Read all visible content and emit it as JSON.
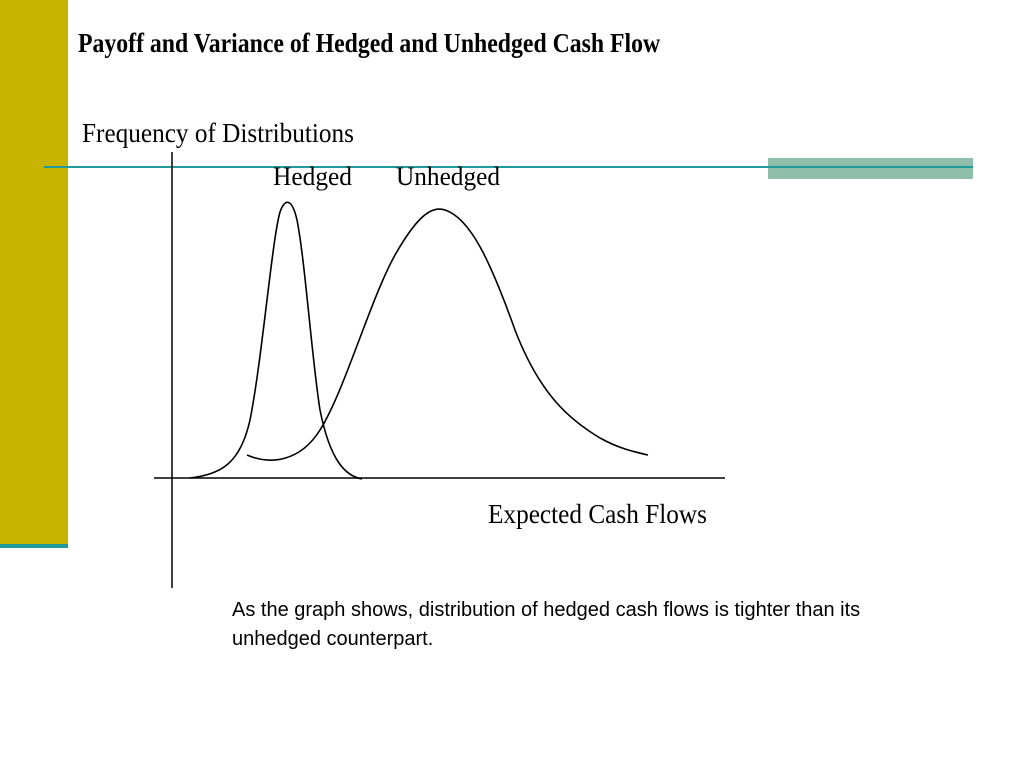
{
  "slide": {
    "title": "Payoff and Variance of Hedged and Unhedged Cash Flow",
    "caption": "As the graph shows, distribution of hedged cash flows is tighter than its unhedged counterpart."
  },
  "diagram": {
    "y_axis_label": "Frequency of Distributions",
    "x_axis_label": "Expected Cash Flows",
    "curves": [
      {
        "label": "Hedged",
        "shape": "narrow tall bell curve"
      },
      {
        "label": "Unhedged",
        "shape": "wide skewed bell curve"
      }
    ]
  },
  "colors": {
    "accent_bar": "#c8b400",
    "teal_rule": "#1f9b9b",
    "teal_block": "#8fbfaa",
    "curve_stroke": "#000000"
  }
}
